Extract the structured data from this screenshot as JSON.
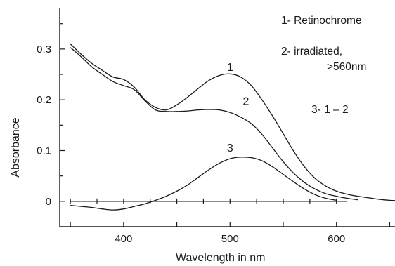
{
  "chart_data": {
    "type": "line",
    "xlabel": "Wavelength in nm",
    "ylabel": "Absorbance",
    "xlim": [
      340,
      655
    ],
    "ylim": [
      -0.05,
      0.38
    ],
    "xticks": [
      400,
      500,
      600
    ],
    "yticks": [
      0,
      0.1,
      0.2,
      0.3
    ],
    "xtick_labels": [
      "400",
      "500",
      "600"
    ],
    "ytick_labels": [
      "0",
      "0.1",
      "0.2",
      "0.3"
    ],
    "legend": [
      {
        "text": "1-   Retinochrome"
      },
      {
        "text": "2-   irradiated,"
      },
      {
        "text": ">560nm"
      },
      {
        "text": "3-   1 – 2"
      }
    ],
    "series": [
      {
        "label": "1",
        "label_at": [
          500,
          0.257
        ],
        "x": [
          350,
          360,
          370,
          380,
          390,
          400,
          410,
          420,
          430,
          440,
          450,
          460,
          470,
          480,
          490,
          500,
          510,
          520,
          530,
          540,
          550,
          560,
          570,
          580,
          590,
          600,
          610,
          620,
          630,
          640,
          650,
          655
        ],
        "y": [
          0.31,
          0.29,
          0.272,
          0.258,
          0.245,
          0.24,
          0.225,
          0.2,
          0.185,
          0.18,
          0.19,
          0.205,
          0.222,
          0.238,
          0.248,
          0.251,
          0.245,
          0.228,
          0.2,
          0.168,
          0.133,
          0.098,
          0.068,
          0.045,
          0.03,
          0.02,
          0.014,
          0.01,
          0.007,
          0.004,
          0.002,
          0.0015
        ]
      },
      {
        "label": "2",
        "label_at": [
          515,
          0.19
        ],
        "x": [
          350,
          360,
          370,
          380,
          390,
          400,
          410,
          420,
          430,
          440,
          450,
          460,
          470,
          480,
          490,
          500,
          510,
          520,
          530,
          540,
          550,
          560,
          570,
          580,
          590,
          600,
          610,
          620
        ],
        "y": [
          0.303,
          0.285,
          0.265,
          0.25,
          0.236,
          0.228,
          0.22,
          0.198,
          0.18,
          0.177,
          0.177,
          0.178,
          0.18,
          0.181,
          0.18,
          0.175,
          0.166,
          0.153,
          0.132,
          0.105,
          0.078,
          0.055,
          0.037,
          0.024,
          0.015,
          0.01,
          0.006,
          0.003
        ]
      },
      {
        "label": "3",
        "label_at": [
          500,
          0.098
        ],
        "x": [
          350,
          360,
          370,
          380,
          390,
          400,
          410,
          420,
          430,
          440,
          450,
          460,
          470,
          480,
          490,
          500,
          510,
          520,
          530,
          540,
          550,
          560,
          570,
          580,
          590,
          600
        ],
        "y": [
          -0.008,
          -0.01,
          -0.012,
          -0.015,
          -0.017,
          -0.015,
          -0.01,
          -0.005,
          0.002,
          0.01,
          0.02,
          0.032,
          0.047,
          0.062,
          0.075,
          0.084,
          0.087,
          0.086,
          0.08,
          0.068,
          0.053,
          0.038,
          0.024,
          0.013,
          0.006,
          0.002
        ]
      }
    ],
    "baseline": {
      "y": 0,
      "x": [
        350,
        610
      ],
      "ticks": [
        350,
        375,
        400,
        425,
        450,
        475,
        500,
        525,
        550,
        575,
        600
      ]
    }
  }
}
